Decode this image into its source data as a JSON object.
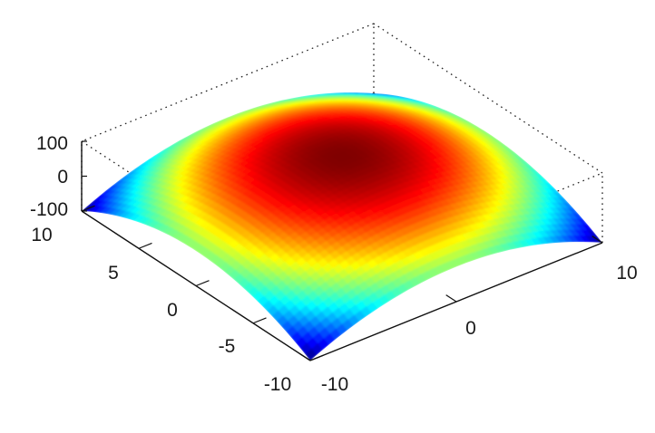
{
  "chart_data": {
    "type": "surface",
    "title": "",
    "xlabel": "",
    "ylabel": "",
    "zlabel": "",
    "colormap": "jet",
    "x_range": [
      -10,
      10
    ],
    "y_range": [
      -10,
      10
    ],
    "z_range": [
      -100,
      100
    ],
    "x_ticks": [
      "-10",
      "0",
      "10"
    ],
    "y_ticks": [
      "10",
      "5",
      "0",
      "-5",
      "-10"
    ],
    "z_ticks": [
      "100",
      "0",
      "-100"
    ],
    "surface": {
      "function": "z = 100 - x^2 - y^2",
      "z_at_center": 100,
      "z_at_corners": -100
    },
    "grid": false,
    "box": true
  }
}
